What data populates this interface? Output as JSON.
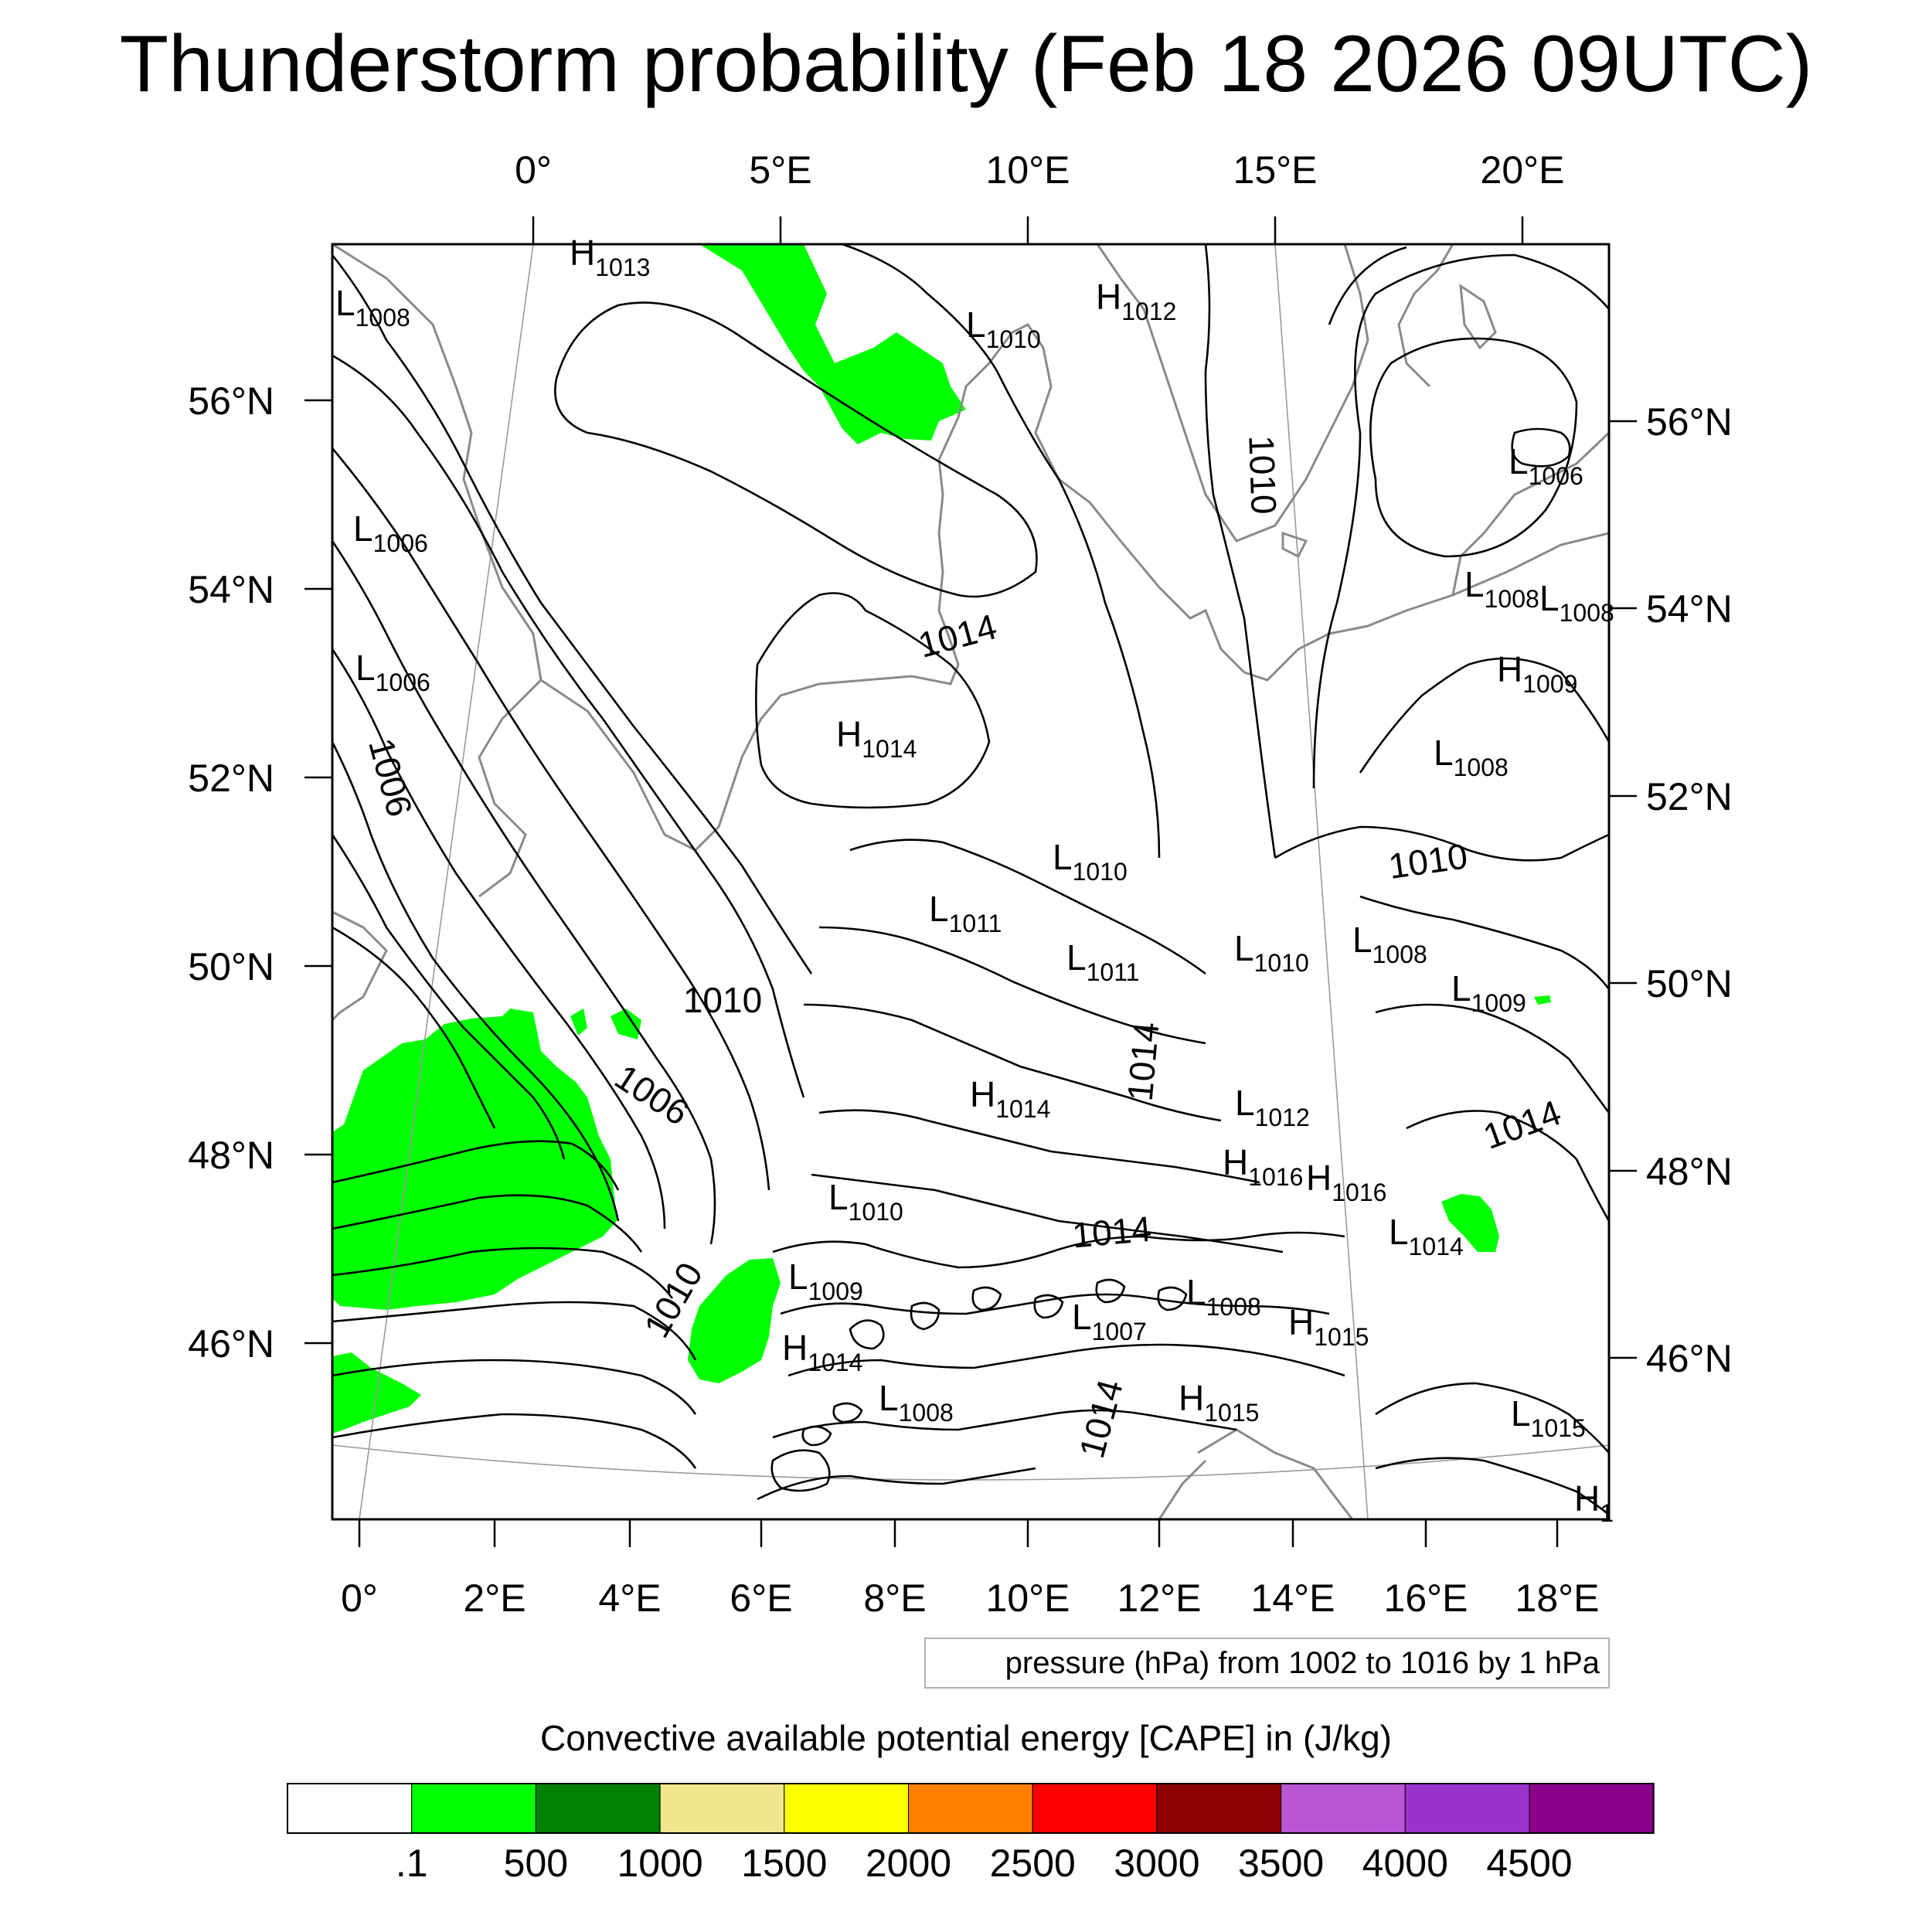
{
  "title": "Thunderstorm probability (Feb 18 2026 09UTC)",
  "top_axis": [
    "0°",
    "5°E",
    "10°E",
    "15°E",
    "20°E"
  ],
  "bottom_axis": [
    "0°",
    "2°E",
    "4°E",
    "6°E",
    "8°E",
    "10°E",
    "12°E",
    "14°E",
    "16°E",
    "18°E"
  ],
  "left_axis": [
    "56°N",
    "54°N",
    "52°N",
    "50°N",
    "48°N",
    "46°N"
  ],
  "right_axis": [
    "56°N",
    "54°N",
    "52°N",
    "50°N",
    "48°N",
    "46°N"
  ],
  "pressure_systems": [
    {
      "type": "H",
      "value": "1013"
    },
    {
      "type": "L",
      "value": "1008"
    },
    {
      "type": "L",
      "value": "1010"
    },
    {
      "type": "H",
      "value": "1012"
    },
    {
      "type": "L",
      "value": "1006"
    },
    {
      "type": "L",
      "value": "1006"
    },
    {
      "type": "L",
      "value": "1006"
    },
    {
      "type": "L",
      "value": "1008"
    },
    {
      "type": "L",
      "value": "1008"
    },
    {
      "type": "H",
      "value": "1009"
    },
    {
      "type": "H",
      "value": "1014"
    },
    {
      "type": "L",
      "value": "1008"
    },
    {
      "type": "L",
      "value": "1010"
    },
    {
      "type": "L",
      "value": "1011"
    },
    {
      "type": "L",
      "value": "1011"
    },
    {
      "type": "L",
      "value": "1010"
    },
    {
      "type": "L",
      "value": "1008"
    },
    {
      "type": "L",
      "value": "1009"
    },
    {
      "type": "H",
      "value": "1014"
    },
    {
      "type": "L",
      "value": "1012"
    },
    {
      "type": "H",
      "value": "1016"
    },
    {
      "type": "H",
      "value": "1016"
    },
    {
      "type": "L",
      "value": "1010"
    },
    {
      "type": "L",
      "value": "1014"
    },
    {
      "type": "L",
      "value": "1009"
    },
    {
      "type": "L",
      "value": "1008"
    },
    {
      "type": "L",
      "value": "1007"
    },
    {
      "type": "H",
      "value": "1015"
    },
    {
      "type": "H",
      "value": "1014"
    },
    {
      "type": "L",
      "value": "1008"
    },
    {
      "type": "H",
      "value": "1015"
    },
    {
      "type": "L",
      "value": "1015"
    },
    {
      "type": "H",
      "value": "1"
    }
  ],
  "contour_labels": [
    "1010",
    "1014",
    "1006",
    "1010",
    "1010",
    "1006",
    "1014",
    "1014",
    "1014",
    "1010",
    "1014"
  ],
  "pressure_note": "pressure (hPa) from 1002 to 1016 by 1 hPa",
  "colorbar": {
    "title": "Convective available potential energy [CAPE] in (J/kg)",
    "labels": [
      ".1",
      "500",
      "1000",
      "1500",
      "2000",
      "2500",
      "3000",
      "3500",
      "4000",
      "4500"
    ],
    "colors": [
      "#ffffff",
      "#00ff00",
      "#008000",
      "#f0e68c",
      "#ffff00",
      "#ff8000",
      "#ff0000",
      "#8b0000",
      "#ba55d3",
      "#9932cc",
      "#8b008b"
    ]
  }
}
